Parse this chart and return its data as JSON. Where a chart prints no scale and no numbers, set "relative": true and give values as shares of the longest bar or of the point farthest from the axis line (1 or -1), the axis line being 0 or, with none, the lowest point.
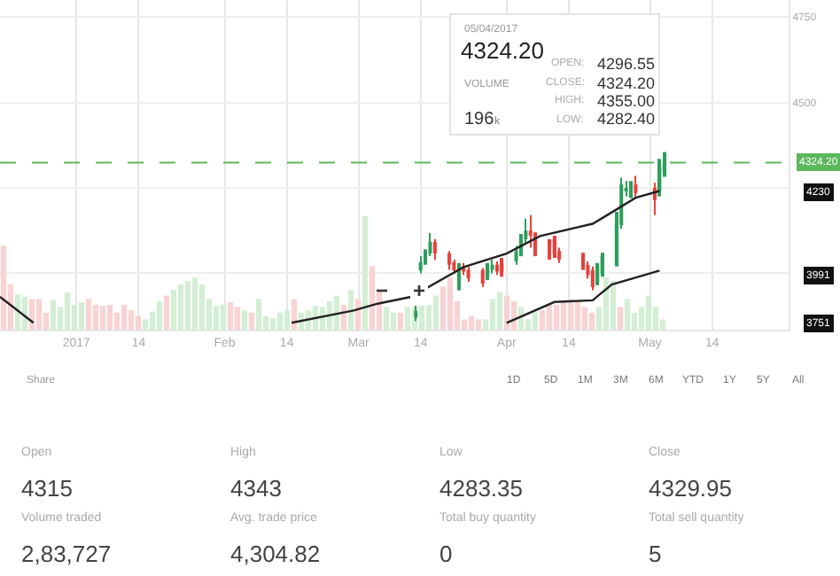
{
  "chart_data": [
    {
      "type": "candlestick",
      "x": [
        "2017-03-13",
        "2017-03-14",
        "2017-03-15",
        "2017-03-16",
        "2017-03-17",
        "2017-03-20",
        "2017-03-21",
        "2017-03-22",
        "2017-03-23",
        "2017-03-24",
        "2017-03-27",
        "2017-03-28",
        "2017-03-29",
        "2017-03-30",
        "2017-03-31",
        "2017-04-03",
        "2017-04-04",
        "2017-04-05",
        "2017-04-06",
        "2017-04-07",
        "2017-04-10",
        "2017-04-11",
        "2017-04-12",
        "2017-04-17",
        "2017-04-18",
        "2017-04-19",
        "2017-04-20",
        "2017-04-21",
        "2017-04-24",
        "2017-04-25",
        "2017-04-26",
        "2017-04-27",
        "2017-04-28",
        "2017-05-02",
        "2017-05-03",
        "2017-05-04"
      ],
      "ohlc": [
        [
          3870,
          3905,
          3860,
          3890
        ],
        [
          4008,
          4050,
          4000,
          4033
        ],
        [
          4033,
          4070,
          4025,
          4058
        ],
        [
          4058,
          4118,
          4050,
          4092
        ],
        [
          4092,
          4100,
          4040,
          4058
        ],
        [
          4058,
          4065,
          4010,
          4025
        ],
        [
          4033,
          4040,
          4000,
          4008
        ],
        [
          4010,
          4030,
          3950,
          4015
        ],
        [
          4020,
          4030,
          3995,
          4005
        ],
        [
          4010,
          4020,
          3975,
          3985
        ],
        [
          4010,
          4015,
          3960,
          3970
        ],
        [
          3990,
          4030,
          3980,
          4015
        ],
        [
          4010,
          4040,
          4000,
          4025
        ],
        [
          4025,
          4035,
          3995,
          4005
        ],
        [
          4030,
          4045,
          3990,
          4005
        ],
        [
          4035,
          4080,
          4025,
          4065
        ],
        [
          4058,
          4115,
          4050,
          4100
        ],
        [
          4100,
          4160,
          4090,
          4125
        ],
        [
          4125,
          4170,
          4075,
          4110
        ],
        [
          4110,
          4120,
          4050,
          4065
        ],
        [
          4090,
          4100,
          4040,
          4085
        ],
        [
          4100,
          4110,
          4045,
          4055
        ],
        [
          4065,
          4075,
          4030,
          4040
        ],
        [
          4050,
          4060,
          4010,
          4020
        ],
        [
          4025,
          4035,
          3985,
          3995
        ],
        [
          4010,
          4020,
          3950,
          3960
        ],
        [
          3975,
          4030,
          3965,
          4020
        ],
        [
          4000,
          4060,
          3990,
          4050
        ],
        [
          4030,
          4180,
          4020,
          4150
        ],
        [
          4140,
          4280,
          4130,
          4260
        ],
        [
          4240,
          4270,
          4225,
          4245
        ],
        [
          4235,
          4270,
          4220,
          4255
        ],
        [
          4260,
          4285,
          4225,
          4235
        ],
        [
          4250,
          4265,
          4170,
          4215
        ],
        [
          4240,
          4335,
          4225,
          4310
        ],
        [
          4296.55,
          4355.0,
          4282.4,
          4324.2
        ]
      ],
      "series": [
        {
          "type": "line",
          "color": "#222222",
          "x": [
            "2016-12-16",
            "2016-12-23",
            "2017-01-01",
            "2017-02-15",
            "2017-02-28",
            "2017-03-05",
            "2017-03-12",
            "2017-03-23",
            "2017-04-01",
            "2017-04-08",
            "2017-04-19",
            "2017-04-22",
            "2017-04-28",
            "2017-05-03"
          ],
          "values": [
            3931,
            3855,
            null,
            3855,
            3891,
            3911,
            3931,
            4018,
            4058,
            4109,
            4145,
            4170,
            4221,
            4241
          ]
        },
        {
          "type": "line",
          "color": "#222222",
          "x": [
            "2017-04-01",
            "2017-04-11",
            "2017-04-19",
            "2017-04-23",
            "2017-05-03"
          ],
          "values": [
            3855,
            3916,
            3921,
            3967,
            4008
          ]
        }
      ],
      "xlim": [
        "2016-12-16",
        "2017-05-30"
      ],
      "xticks": [
        {
          "value": "2017-01-01",
          "label": "2017"
        },
        {
          "value": "2017-01-14",
          "label": "14"
        },
        {
          "value": "2017-02-01",
          "label": "Feb"
        },
        {
          "value": "2017-02-14",
          "label": "14"
        },
        {
          "value": "2017-03-01",
          "label": "Mar"
        },
        {
          "value": "2017-03-14",
          "label": "14"
        },
        {
          "value": "2017-04-01",
          "label": "Apr"
        },
        {
          "value": "2017-04-14",
          "label": "14"
        },
        {
          "value": "2017-05-01",
          "label": "May"
        },
        {
          "value": "2017-05-14",
          "label": "14"
        }
      ],
      "ylim": [
        3835,
        4800
      ],
      "yticks": [
        4750,
        4500,
        {
          "value": 4250,
          "label": null
        },
        {
          "value": 4000,
          "label": null
        }
      ],
      "grid": true,
      "ref_lines": [
        {
          "axis": "y",
          "value": 4324.2,
          "label": "4324.20",
          "color": "#5cb85c",
          "line_style": "dashed"
        }
      ],
      "annotations": [
        "05/04/2017",
        "4324.20",
        "VOLUME",
        "196",
        "k",
        "OPEN:",
        "4296.55",
        "CLOSE:",
        "4324.20",
        "HIGH:",
        "4355.00",
        "LOW:",
        "4282.40",
        "4230",
        "3991",
        "3751",
        "−",
        "+"
      ]
    },
    {
      "type": "bar",
      "relative": true,
      "categories": [
        null,
        null,
        null,
        null,
        null,
        null,
        null,
        null,
        null,
        null,
        null,
        null,
        null,
        null,
        null,
        null,
        null,
        null,
        null,
        null,
        null,
        null,
        null,
        null,
        null,
        null,
        null,
        null,
        null,
        null,
        null,
        null,
        null,
        null,
        null,
        null,
        null,
        null,
        null,
        null,
        null,
        null,
        null,
        null,
        null,
        null,
        null,
        null,
        null,
        null,
        null,
        null,
        null,
        null,
        null,
        null,
        null,
        null,
        null,
        null,
        null,
        null,
        null,
        null,
        null,
        null,
        null,
        null,
        null,
        null,
        null,
        null,
        null,
        null,
        null,
        null,
        null,
        null,
        null,
        null,
        null,
        null,
        null,
        null,
        null,
        null,
        null,
        null,
        null,
        null,
        null,
        null,
        null,
        null
      ],
      "values": [
        0.74,
        0.4,
        0.31,
        0.29,
        0.27,
        0.27,
        0.15,
        0.26,
        0.2,
        0.33,
        0.22,
        0.24,
        0.27,
        0.22,
        0.21,
        0.22,
        0.15,
        0.22,
        0.17,
        0.12,
        0.09,
        0.16,
        0.25,
        0.3,
        0.35,
        0.4,
        0.43,
        0.46,
        0.4,
        0.27,
        0.21,
        0.22,
        0.24,
        0.2,
        0.17,
        0.15,
        0.27,
        0.12,
        0.1,
        0.15,
        0.17,
        0.27,
        0.15,
        0.17,
        0.21,
        0.2,
        0.25,
        0.3,
        0.22,
        0.35,
        0.27,
        1,
        0.56,
        0.35,
        0.2,
        0.15,
        0.15,
        0.2,
        0.2,
        0.22,
        0.22,
        0.3,
        0.38,
        0.46,
        0.25,
        0.09,
        0.12,
        0.09,
        0.09,
        0.27,
        0.33,
        0.3,
        0.25,
        0.2,
        0.09,
        0.15,
        0.17,
        0.22,
        0.22,
        0.25,
        0.27,
        0.25,
        0.2,
        0.15,
        0.2,
        0.46,
        0.43,
        0.2,
        0.27,
        0.15,
        0.2,
        0.3,
        0.2,
        0.09
      ],
      "colors": [
        "#f8d3d3",
        "#f8d3d3",
        "#d4eed6",
        "#d4eed6",
        "#f8d3d3",
        "#f8d3d3",
        "#f8d3d3",
        "#d4eed6",
        "#d4eed6",
        "#d4eed6",
        "#d4eed6",
        "#d4eed6",
        "#f8d3d3",
        "#f8d3d3",
        "#f8d3d3",
        "#f8d3d3",
        "#f8d3d3",
        "#f8d3d3",
        "#f8d3d3",
        "#f8d3d3",
        "#d4eed6",
        "#d4eed6",
        "#d4eed6",
        "#f8d3d3",
        "#d4eed6",
        "#d4eed6",
        "#d4eed6",
        "#d4eed6",
        "#d4eed6",
        "#d4eed6",
        "#d4eed6",
        "#d4eed6",
        "#f8d3d3",
        "#f8d3d3",
        "#d4eed6",
        "#f8d3d3",
        "#d4eed6",
        "#d4eed6",
        "#d4eed6",
        "#d4eed6",
        "#d4eed6",
        "#f8d3d3",
        "#d4eed6",
        "#d4eed6",
        "#d4eed6",
        "#d4eed6",
        "#d4eed6",
        "#d4eed6",
        "#f8d3d3",
        "#d4eed6",
        "#f8d3d3",
        "#d4eed6",
        "#f8d3d3",
        "#f8d3d3",
        "#d4eed6",
        "#d4eed6",
        "#f8d3d3",
        "#d4eed6",
        "#d4eed6",
        "#d4eed6",
        "#d4eed6",
        "#d4eed6",
        "#f8d3d3",
        "#f8d3d3",
        "#f8d3d3",
        "#f8d3d3",
        "#f8d3d3",
        "#f8d3d3",
        "#d4eed6",
        "#d4eed6",
        "#d4eed6",
        "#f8d3d3",
        "#f8d3d3",
        "#d4eed6",
        "#d4eed6",
        "#d4eed6",
        "#f8d3d3",
        "#f8d3d3",
        "#f8d3d3",
        "#f8d3d3",
        "#f8d3d3",
        "#f8d3d3",
        "#f8d3d3",
        "#f8d3d3",
        "#d4eed6",
        "#d4eed6",
        "#d4eed6",
        "#f8d3d3",
        "#d4eed6",
        "#d4eed6",
        "#d4eed6",
        "#d4eed6",
        "#d4eed6",
        "#d4eed6"
      ]
    },
    {
      "type": "other",
      "annotations": [
        "Share",
        "1D",
        "5D",
        "1M",
        "3M",
        "6M",
        "YTD",
        "1Y",
        "5Y",
        "All",
        "Open",
        "4315",
        "High",
        "4343",
        "Low",
        "4283.35",
        "Close",
        "4329.95",
        "Volume traded",
        "2,83,727",
        "Avg. trade price",
        "4,304.82",
        "Total buy quantity",
        "0",
        "Total sell quantity",
        "5"
      ]
    }
  ]
}
